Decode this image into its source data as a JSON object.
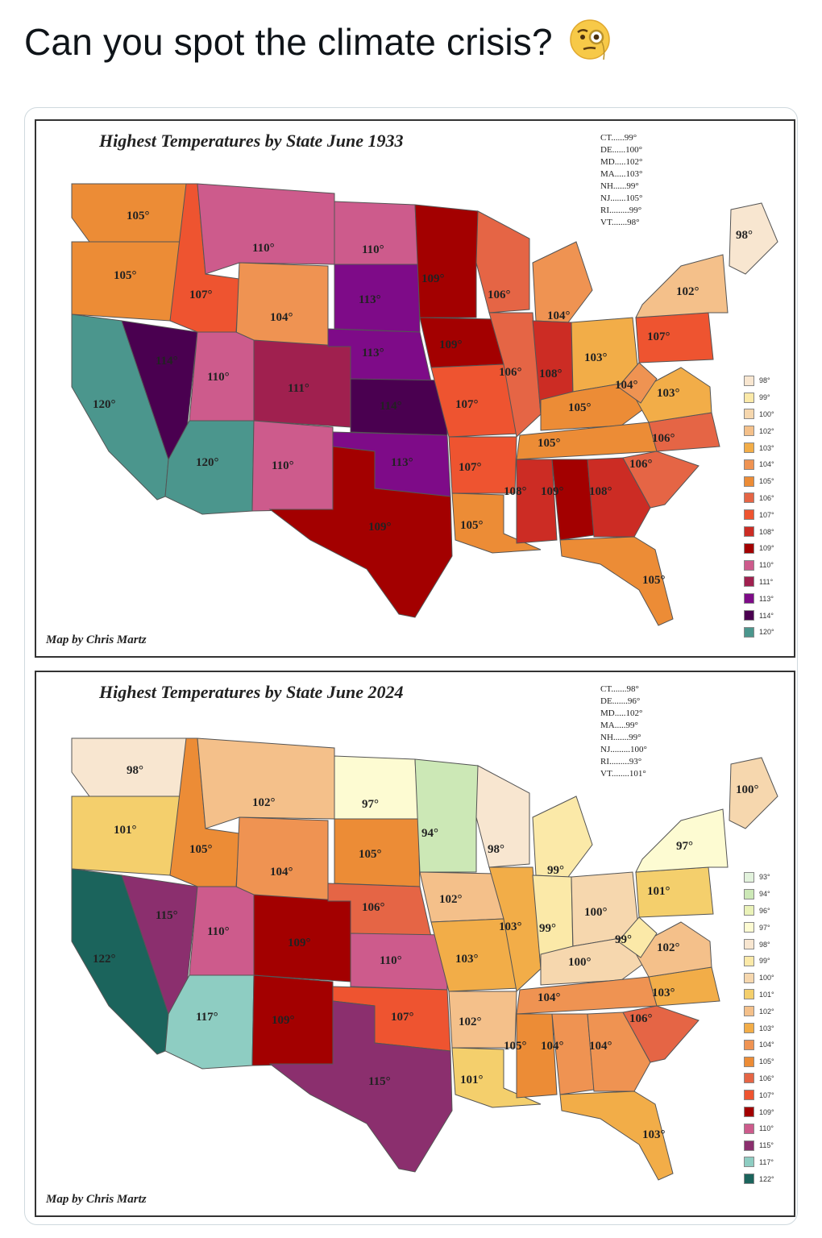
{
  "tweet": {
    "text": "Can you spot the climate crisis?",
    "emoji": "face-with-monocle-icon"
  },
  "map1933": {
    "title": "Highest Temperatures by State June 1933",
    "credit": "Map by Chris Martz",
    "ne_list": [
      "CT......99°",
      "DE......100°",
      "MD.....102°",
      "MA.....103°",
      "NH......99°",
      "NJ.......105°",
      "RI.........99°",
      "VT.......98°"
    ],
    "legend": [
      {
        "label": "98°",
        "color": "#f8e6d0"
      },
      {
        "label": "99°",
        "color": "#fbe9a8"
      },
      {
        "label": "100°",
        "color": "#f6d7ae"
      },
      {
        "label": "102°",
        "color": "#f4c08a"
      },
      {
        "label": "103°",
        "color": "#f2ad48"
      },
      {
        "label": "104°",
        "color": "#ef9352"
      },
      {
        "label": "105°",
        "color": "#ec8c36"
      },
      {
        "label": "106°",
        "color": "#e56545"
      },
      {
        "label": "107°",
        "color": "#ee5430"
      },
      {
        "label": "108°",
        "color": "#cc2c24"
      },
      {
        "label": "109°",
        "color": "#a30000"
      },
      {
        "label": "110°",
        "color": "#cd5b8c"
      },
      {
        "label": "111°",
        "color": "#a0204f"
      },
      {
        "label": "113°",
        "color": "#7e0b88"
      },
      {
        "label": "114°",
        "color": "#4a0050"
      },
      {
        "label": "120°",
        "color": "#4b968d"
      }
    ],
    "states": [
      {
        "name": "WA",
        "temp": "105°",
        "color": "#ec8c36"
      },
      {
        "name": "OR",
        "temp": "105°",
        "color": "#ec8c36"
      },
      {
        "name": "CA",
        "temp": "120°",
        "color": "#4b968d"
      },
      {
        "name": "NV",
        "temp": "114°",
        "color": "#4a0050"
      },
      {
        "name": "ID",
        "temp": "107°",
        "color": "#ee5430"
      },
      {
        "name": "MT",
        "temp": "110°",
        "color": "#cd5b8c"
      },
      {
        "name": "WY",
        "temp": "104°",
        "color": "#ef9352"
      },
      {
        "name": "UT",
        "temp": "110°",
        "color": "#cd5b8c"
      },
      {
        "name": "AZ",
        "temp": "120°",
        "color": "#4b968d"
      },
      {
        "name": "CO",
        "temp": "111°",
        "color": "#a0204f"
      },
      {
        "name": "NM",
        "temp": "110°",
        "color": "#cd5b8c"
      },
      {
        "name": "ND",
        "temp": "110°",
        "color": "#cd5b8c"
      },
      {
        "name": "SD",
        "temp": "113°",
        "color": "#7e0b88"
      },
      {
        "name": "NE",
        "temp": "113°",
        "color": "#7e0b88"
      },
      {
        "name": "KS",
        "temp": "114°",
        "color": "#4a0050"
      },
      {
        "name": "OK",
        "temp": "113°",
        "color": "#7e0b88"
      },
      {
        "name": "TX",
        "temp": "109°",
        "color": "#a30000"
      },
      {
        "name": "MN",
        "temp": "109°",
        "color": "#a30000"
      },
      {
        "name": "IA",
        "temp": "109°",
        "color": "#a30000"
      },
      {
        "name": "MO",
        "temp": "107°",
        "color": "#ee5430"
      },
      {
        "name": "AR",
        "temp": "107°",
        "color": "#ee5430"
      },
      {
        "name": "LA",
        "temp": "105°",
        "color": "#ec8c36"
      },
      {
        "name": "WI",
        "temp": "106°",
        "color": "#e56545"
      },
      {
        "name": "IL",
        "temp": "106°",
        "color": "#e56545"
      },
      {
        "name": "MI",
        "temp": "104°",
        "color": "#ef9352"
      },
      {
        "name": "IN",
        "temp": "108°",
        "color": "#cc2c24"
      },
      {
        "name": "OH",
        "temp": "103°",
        "color": "#f2ad48"
      },
      {
        "name": "KY",
        "temp": "105°",
        "color": "#ec8c36"
      },
      {
        "name": "TN",
        "temp": "105°",
        "color": "#ec8c36"
      },
      {
        "name": "MS",
        "temp": "108°",
        "color": "#cc2c24"
      },
      {
        "name": "AL",
        "temp": "109°",
        "color": "#a30000"
      },
      {
        "name": "GA",
        "temp": "108°",
        "color": "#cc2c24"
      },
      {
        "name": "FL",
        "temp": "105°",
        "color": "#ec8c36"
      },
      {
        "name": "SC",
        "temp": "106°",
        "color": "#e56545"
      },
      {
        "name": "NC",
        "temp": "106°",
        "color": "#e56545"
      },
      {
        "name": "VA",
        "temp": "103°",
        "color": "#f2ad48"
      },
      {
        "name": "WV",
        "temp": "104°",
        "color": "#ef9352"
      },
      {
        "name": "PA",
        "temp": "107°",
        "color": "#ee5430"
      },
      {
        "name": "NY",
        "temp": "102°",
        "color": "#f4c08a"
      },
      {
        "name": "ME",
        "temp": "98°",
        "color": "#f8e6d0"
      }
    ]
  },
  "map2024": {
    "title": "Highest Temperatures by State June 2024",
    "credit": "Map by Chris Martz",
    "ne_list": [
      "CT.......98°",
      "DE.......96°",
      "MD.....102°",
      "MA.....99°",
      "NH.......99°",
      "NJ.........100°",
      "RI.........93°",
      "VT........101°"
    ],
    "legend": [
      {
        "label": "93°",
        "color": "#e2f2dc"
      },
      {
        "label": "94°",
        "color": "#cce8b6"
      },
      {
        "label": "96°",
        "color": "#eaf2b8"
      },
      {
        "label": "97°",
        "color": "#fdfbd2"
      },
      {
        "label": "98°",
        "color": "#f8e6d0"
      },
      {
        "label": "99°",
        "color": "#fbe9a8"
      },
      {
        "label": "100°",
        "color": "#f6d7ae"
      },
      {
        "label": "101°",
        "color": "#f4cf6c"
      },
      {
        "label": "102°",
        "color": "#f4c08a"
      },
      {
        "label": "103°",
        "color": "#f2ad48"
      },
      {
        "label": "104°",
        "color": "#ef9352"
      },
      {
        "label": "105°",
        "color": "#ec8c36"
      },
      {
        "label": "106°",
        "color": "#e56545"
      },
      {
        "label": "107°",
        "color": "#ee5430"
      },
      {
        "label": "109°",
        "color": "#a30000"
      },
      {
        "label": "110°",
        "color": "#cd5b8c"
      },
      {
        "label": "115°",
        "color": "#8b2f6e"
      },
      {
        "label": "117°",
        "color": "#8ecdc2"
      },
      {
        "label": "122°",
        "color": "#1b645c"
      }
    ],
    "states": [
      {
        "name": "WA",
        "temp": "98°",
        "color": "#f8e6d0"
      },
      {
        "name": "OR",
        "temp": "101°",
        "color": "#f4cf6c"
      },
      {
        "name": "CA",
        "temp": "122°",
        "color": "#1b645c"
      },
      {
        "name": "NV",
        "temp": "115°",
        "color": "#8b2f6e"
      },
      {
        "name": "ID",
        "temp": "105°",
        "color": "#ec8c36"
      },
      {
        "name": "MT",
        "temp": "102°",
        "color": "#f4c08a"
      },
      {
        "name": "WY",
        "temp": "104°",
        "color": "#ef9352"
      },
      {
        "name": "UT",
        "temp": "110°",
        "color": "#cd5b8c"
      },
      {
        "name": "AZ",
        "temp": "117°",
        "color": "#8ecdc2"
      },
      {
        "name": "CO",
        "temp": "109°",
        "color": "#a30000"
      },
      {
        "name": "NM",
        "temp": "109°",
        "color": "#a30000"
      },
      {
        "name": "ND",
        "temp": "97°",
        "color": "#fdfbd2"
      },
      {
        "name": "SD",
        "temp": "105°",
        "color": "#ec8c36"
      },
      {
        "name": "NE",
        "temp": "106°",
        "color": "#e56545"
      },
      {
        "name": "KS",
        "temp": "110°",
        "color": "#cd5b8c"
      },
      {
        "name": "OK",
        "temp": "107°",
        "color": "#ee5430"
      },
      {
        "name": "TX",
        "temp": "115°",
        "color": "#8b2f6e"
      },
      {
        "name": "MN",
        "temp": "94°",
        "color": "#cce8b6"
      },
      {
        "name": "IA",
        "temp": "102°",
        "color": "#f4c08a"
      },
      {
        "name": "MO",
        "temp": "103°",
        "color": "#f2ad48"
      },
      {
        "name": "AR",
        "temp": "102°",
        "color": "#f4c08a"
      },
      {
        "name": "LA",
        "temp": "101°",
        "color": "#f4cf6c"
      },
      {
        "name": "WI",
        "temp": "98°",
        "color": "#f8e6d0"
      },
      {
        "name": "IL",
        "temp": "103°",
        "color": "#f2ad48"
      },
      {
        "name": "MI",
        "temp": "99°",
        "color": "#fbe9a8"
      },
      {
        "name": "IN",
        "temp": "99°",
        "color": "#fbe9a8"
      },
      {
        "name": "OH",
        "temp": "100°",
        "color": "#f6d7ae"
      },
      {
        "name": "KY",
        "temp": "100°",
        "color": "#f6d7ae"
      },
      {
        "name": "TN",
        "temp": "104°",
        "color": "#ef9352"
      },
      {
        "name": "MS",
        "temp": "105°",
        "color": "#ec8c36"
      },
      {
        "name": "AL",
        "temp": "104°",
        "color": "#ef9352"
      },
      {
        "name": "GA",
        "temp": "104°",
        "color": "#ef9352"
      },
      {
        "name": "FL",
        "temp": "103°",
        "color": "#f2ad48"
      },
      {
        "name": "SC",
        "temp": "106°",
        "color": "#e56545"
      },
      {
        "name": "NC",
        "temp": "103°",
        "color": "#f2ad48"
      },
      {
        "name": "VA",
        "temp": "102°",
        "color": "#f4c08a"
      },
      {
        "name": "WV",
        "temp": "99°",
        "color": "#fbe9a8"
      },
      {
        "name": "PA",
        "temp": "101°",
        "color": "#f4cf6c"
      },
      {
        "name": "NY",
        "temp": "97°",
        "color": "#fdfbd2"
      },
      {
        "name": "ME",
        "temp": "100°",
        "color": "#f6d7ae"
      }
    ]
  }
}
